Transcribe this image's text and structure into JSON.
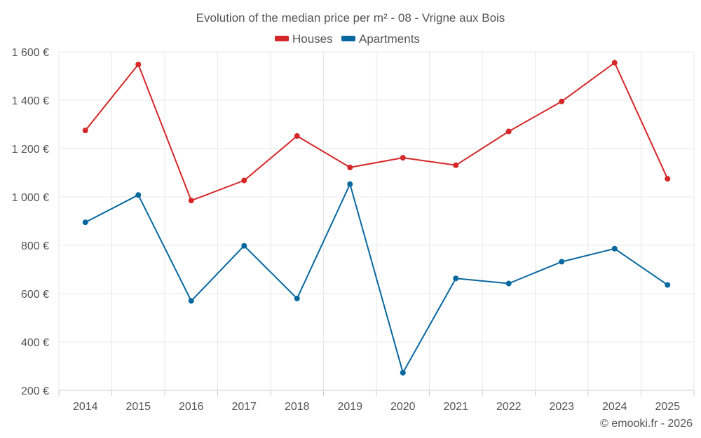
{
  "chart_data": {
    "type": "line",
    "title": "Evolution of the median price per m² - 08 - Vrigne aux Bois",
    "x": [
      "2014",
      "2015",
      "2016",
      "2017",
      "2018",
      "2019",
      "2020",
      "2021",
      "2022",
      "2023",
      "2024",
      "2025"
    ],
    "y_ticks": [
      "200 €",
      "400 €",
      "600 €",
      "800 €",
      "1 000 €",
      "1 200 €",
      "1 400 €",
      "1 600 €"
    ],
    "ylim": [
      200,
      1600
    ],
    "grid": true,
    "legend_position": "top-center",
    "series": [
      {
        "name": "Houses",
        "color": "#d62728",
        "values": [
          1275,
          1548,
          985,
          1068,
          1252,
          1122,
          1162,
          1131,
          1271,
          1395,
          1555,
          1075
        ]
      },
      {
        "name": "Apartments",
        "color": "#07689f",
        "values": [
          895,
          1008,
          570,
          798,
          580,
          1053,
          273,
          663,
          642,
          732,
          786,
          636
        ]
      }
    ],
    "credit": "© emooki.fr - 2026"
  }
}
